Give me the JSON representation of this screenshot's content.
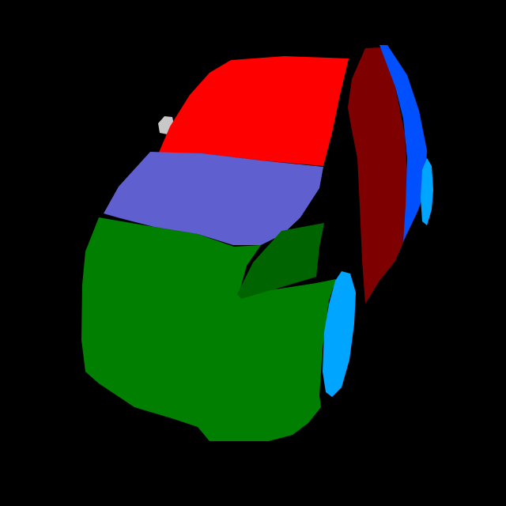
{
  "background_color": "#000000",
  "segmentation": {
    "subject": "car",
    "parts": [
      {
        "name": "roof",
        "color": "#FF0000"
      },
      {
        "name": "windshield",
        "color": "#5F5FCF"
      },
      {
        "name": "hood-body",
        "color": "#007F00"
      },
      {
        "name": "side-mirror",
        "color": "#006400"
      },
      {
        "name": "front-door",
        "color": "#7F0000"
      },
      {
        "name": "rear-window",
        "color": "#0050FF"
      },
      {
        "name": "front-wheel",
        "color": "#00A5FF"
      },
      {
        "name": "rear-wheel",
        "color": "#00A5FF"
      },
      {
        "name": "antenna",
        "color": "#C8C8C8"
      }
    ]
  }
}
